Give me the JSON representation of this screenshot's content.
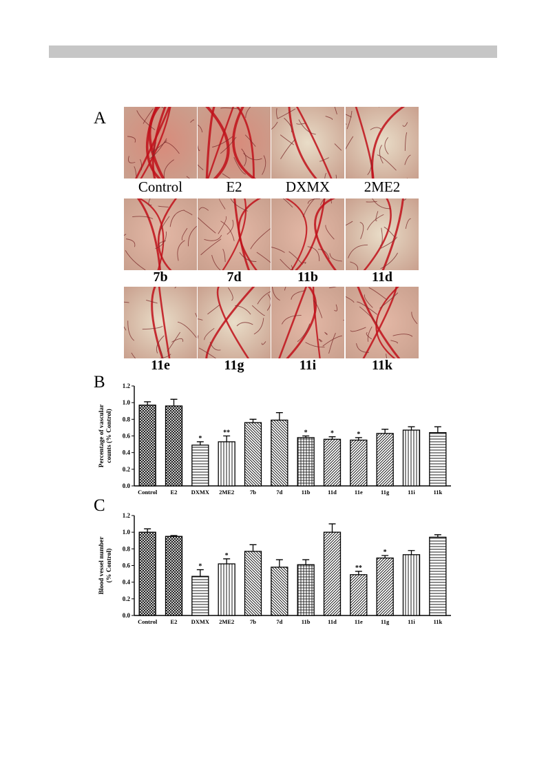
{
  "panels": {
    "a": {
      "letter": "A"
    },
    "b": {
      "letter": "B"
    },
    "c": {
      "letter": "C"
    }
  },
  "photos": [
    {
      "label": "Control",
      "style": "reg",
      "vessel": "dense"
    },
    {
      "label": "E2",
      "style": "reg",
      "vessel": "dense"
    },
    {
      "label": "DXMX",
      "style": "reg",
      "vessel": "sparse"
    },
    {
      "label": "2ME2",
      "style": "reg",
      "vessel": "sparse"
    },
    {
      "label": "7b",
      "style": "bold",
      "vessel": "medium"
    },
    {
      "label": "7d",
      "style": "bold",
      "vessel": "medium"
    },
    {
      "label": "11b",
      "style": "bold",
      "vessel": "medium"
    },
    {
      "label": "11d",
      "style": "bold",
      "vessel": "sparse"
    },
    {
      "label": "11e",
      "style": "bold",
      "vessel": "sparse"
    },
    {
      "label": "11g",
      "style": "bold",
      "vessel": "sparse"
    },
    {
      "label": "11i",
      "style": "bold",
      "vessel": "medium"
    },
    {
      "label": "11k",
      "style": "bold",
      "vessel": "medium"
    }
  ],
  "chart_data": [
    {
      "type": "bar",
      "ylabel": "Percentage of vascular counts (% Control)",
      "ylabel_lines": [
        "Percentage of vascular",
        "counts (% Control)"
      ],
      "ylim": [
        0,
        1.2
      ],
      "yticks": [
        "0.0",
        "0.2",
        "0.4",
        "0.6",
        "0.8",
        "1.0",
        "1.2"
      ],
      "categories": [
        "Control",
        "E2",
        "DXMX",
        "2ME2",
        "7b",
        "7d",
        "11b",
        "11d",
        "11e",
        "11g",
        "11i",
        "11k"
      ],
      "values": [
        0.97,
        0.96,
        0.49,
        0.53,
        0.76,
        0.79,
        0.58,
        0.56,
        0.55,
        0.63,
        0.67,
        0.64
      ],
      "errors": [
        0.04,
        0.08,
        0.04,
        0.07,
        0.04,
        0.09,
        0.02,
        0.03,
        0.03,
        0.05,
        0.04,
        0.07
      ],
      "significance": [
        "",
        "",
        "*",
        "**",
        "",
        "",
        "*",
        "*",
        "*",
        "",
        "",
        ""
      ],
      "patterns": [
        "xhatch",
        "xhatch",
        "hlines",
        "vlines",
        "diagleft",
        "diagleft",
        "grid",
        "diagright",
        "diagright",
        "diagright",
        "vlines",
        "hlines"
      ]
    },
    {
      "type": "bar",
      "ylabel": "Blood vessel number (% Control)",
      "ylabel_lines": [
        "Blood vessel number",
        "(% Control)"
      ],
      "ylim": [
        0,
        1.2
      ],
      "yticks": [
        "0.0",
        "0.2",
        "0.4",
        "0.6",
        "0.8",
        "1.0",
        "1.2"
      ],
      "categories": [
        "Control",
        "E2",
        "DXMX",
        "2ME2",
        "7b",
        "7d",
        "11b",
        "11d",
        "11e",
        "11g",
        "11i",
        "11k"
      ],
      "values": [
        1.0,
        0.95,
        0.47,
        0.62,
        0.77,
        0.58,
        0.61,
        1.0,
        0.49,
        0.69,
        0.73,
        0.94
      ],
      "errors": [
        0.04,
        0.01,
        0.08,
        0.06,
        0.08,
        0.09,
        0.06,
        0.1,
        0.04,
        0.03,
        0.05,
        0.03
      ],
      "significance": [
        "",
        "",
        "*",
        "*",
        "",
        "",
        "",
        "",
        "**",
        "*",
        "",
        ""
      ],
      "patterns": [
        "xhatch",
        "xhatch",
        "hlines",
        "vlines",
        "diagleft",
        "diagleft",
        "grid",
        "diagright",
        "diagright",
        "diagright",
        "vlines",
        "hlines"
      ]
    }
  ]
}
